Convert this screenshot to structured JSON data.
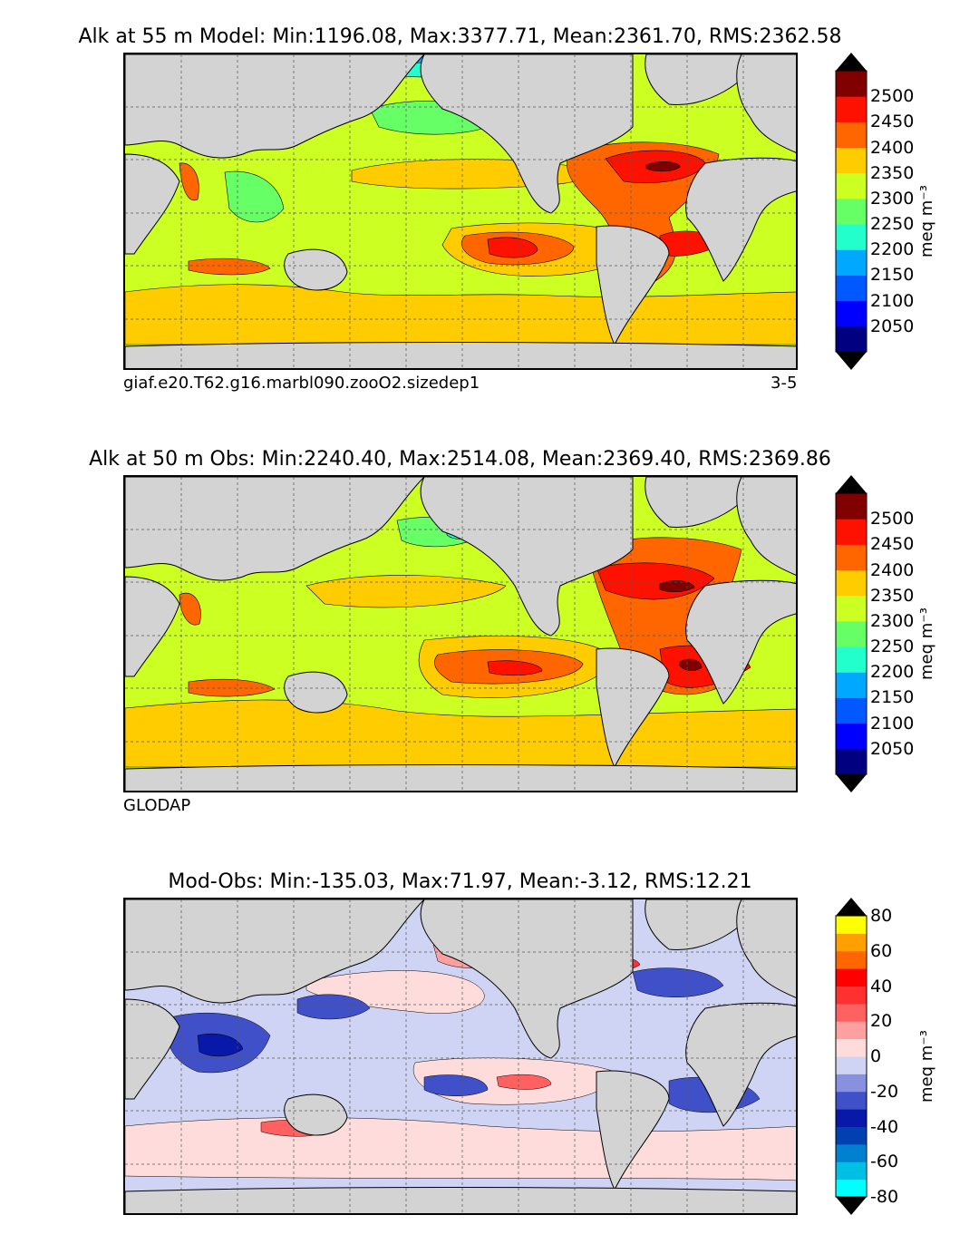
{
  "colors": {
    "land": "#d3d3d3",
    "ocean_missing": "#ffffff",
    "level_colors": [
      "#000080",
      "#0000ff",
      "#0058ff",
      "#00a8ff",
      "#22ffcc",
      "#66ff66",
      "#ccff22",
      "#ffcc00",
      "#ff6600",
      "#ff1100",
      "#800000"
    ],
    "diff_colors": [
      "#00ffff",
      "#00bfe5",
      "#0080d0",
      "#0040b0",
      "#0818a8",
      "#4050c8",
      "#8890e0",
      "#d0d4f4",
      "#ffdcdc",
      "#ffa0a0",
      "#ff6060",
      "#ff3030",
      "#ff0000",
      "#ff6600",
      "#ffa000",
      "#ffff00"
    ]
  },
  "panels": [
    {
      "title": "Alk at 55 m Model: Min:1196.08, Max:3377.71, Mean:2361.70, RMS:2362.58",
      "caption_left": "giaf.e20.T62.g16.marbl090.zooO2.sizedep1",
      "caption_right": "3-5",
      "colorbar": {
        "ticks": [
          "2500",
          "2450",
          "2400",
          "2350",
          "2300",
          "2250",
          "2200",
          "2150",
          "2100",
          "2050"
        ],
        "label": "meq m⁻³",
        "levels": [
          2025,
          2075,
          2125,
          2175,
          2225,
          2275,
          2325,
          2375,
          2425,
          2475,
          2525
        ]
      }
    },
    {
      "title": "Alk at 50 m Obs: Min:2240.40, Max:2514.08, Mean:2369.40, RMS:2369.86",
      "caption_left": "GLODAP",
      "caption_right": "",
      "colorbar": {
        "ticks": [
          "2500",
          "2450",
          "2400",
          "2350",
          "2300",
          "2250",
          "2200",
          "2150",
          "2100",
          "2050"
        ],
        "label": "meq m⁻³",
        "levels": [
          2025,
          2075,
          2125,
          2175,
          2225,
          2275,
          2325,
          2375,
          2425,
          2475,
          2525
        ]
      }
    },
    {
      "title": "Mod-Obs: Min:-135.03, Max:71.97, Mean:-3.12, RMS:12.21",
      "caption_left": "",
      "caption_right": "",
      "colorbar": {
        "ticks": [
          "80",
          "60",
          "40",
          "20",
          "0",
          "-20",
          "-40",
          "-60",
          "-80"
        ],
        "label": "meq m⁻³",
        "levels": [
          -80,
          -70,
          -60,
          -50,
          -40,
          -30,
          -20,
          -10,
          0,
          10,
          20,
          30,
          40,
          50,
          60,
          70,
          80
        ]
      }
    }
  ]
}
